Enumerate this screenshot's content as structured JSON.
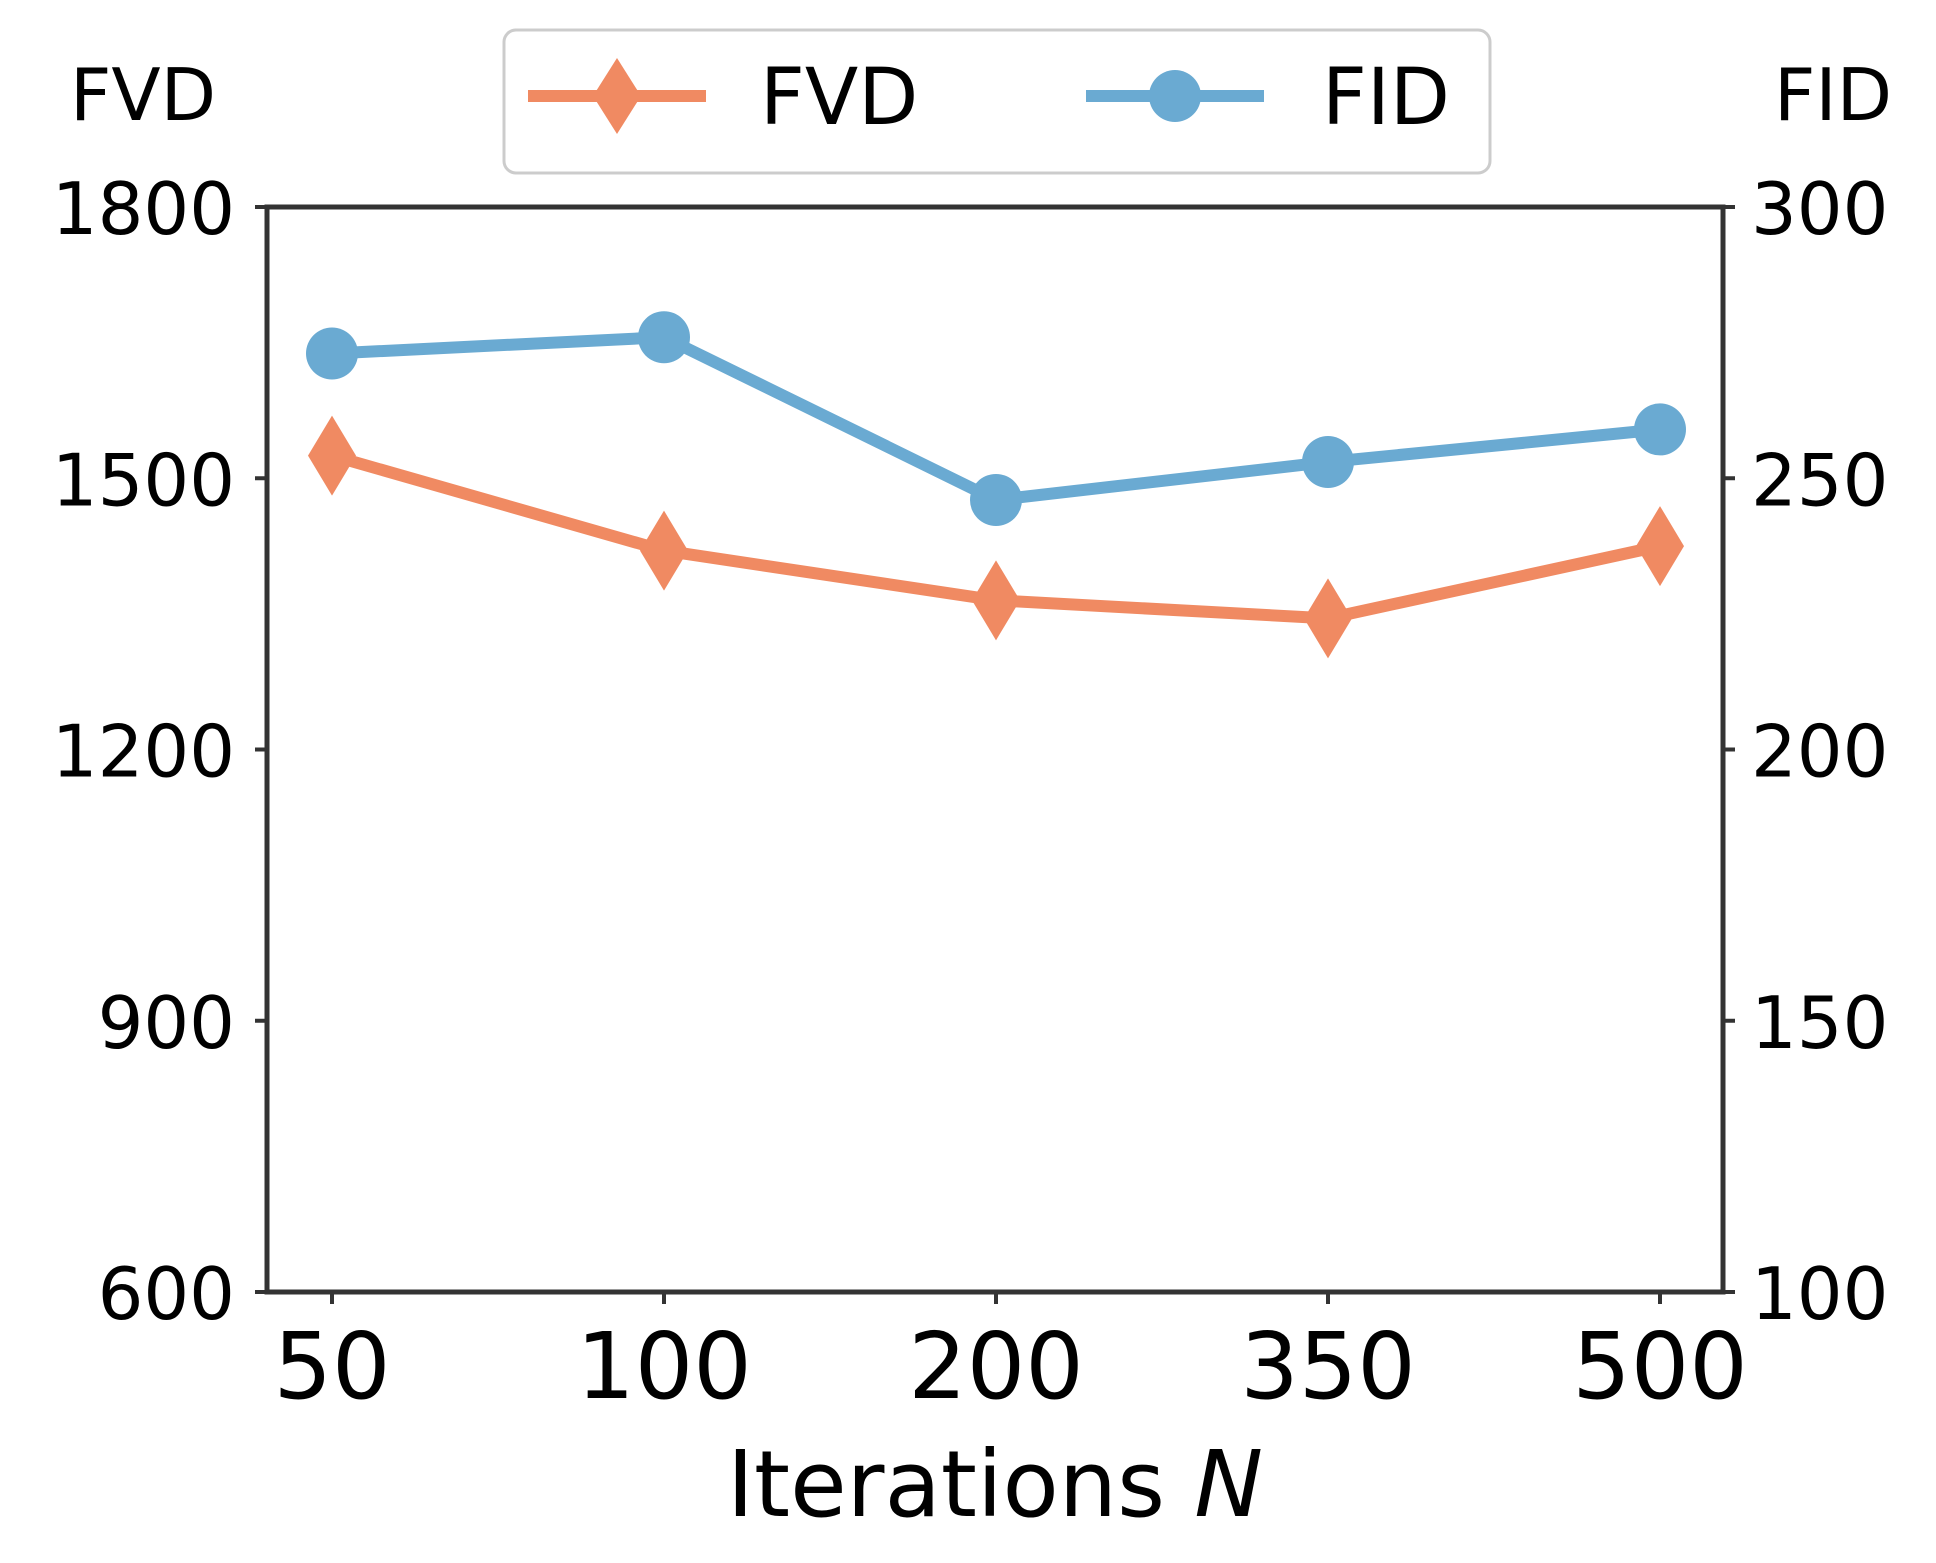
{
  "chart_data": {
    "type": "line",
    "xlabel": "Iterations",
    "xlabel_var": "N",
    "categories": [
      "50",
      "100",
      "200",
      "350",
      "500"
    ],
    "left_axis": {
      "title": "FVD",
      "ylim": [
        600,
        1800
      ],
      "ticks": [
        "600",
        "900",
        "1200",
        "1500",
        "1800"
      ]
    },
    "right_axis": {
      "title": "FID",
      "ylim": [
        100,
        300
      ],
      "ticks": [
        "100",
        "150",
        "200",
        "250",
        "300"
      ]
    },
    "series": [
      {
        "name": "FVD",
        "axis": "left",
        "color": "#f08a62",
        "marker": "diamond",
        "values": [
          1525,
          1420,
          1365,
          1345,
          1425
        ]
      },
      {
        "name": "FID",
        "axis": "right",
        "color": "#6aaad2",
        "marker": "circle",
        "values": [
          273,
          276,
          246,
          253,
          259
        ]
      }
    ],
    "legend": {
      "placement": "top-center",
      "entries": [
        "FVD",
        "FID"
      ]
    }
  }
}
